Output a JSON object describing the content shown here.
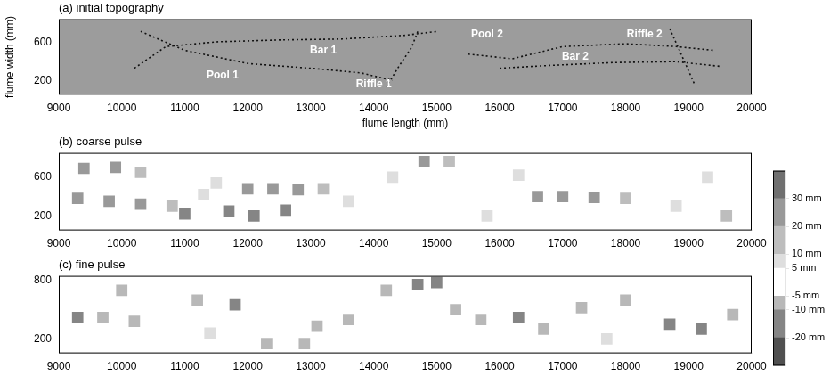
{
  "chart_data": [
    {
      "type": "scatter",
      "title": "(a) initial topography",
      "x_label": "flume length (mm)",
      "y_label": "flume width (mm)",
      "xlim": [
        9000,
        20000
      ],
      "xticks": [
        9000,
        10000,
        11000,
        12000,
        13000,
        14000,
        15000,
        16000,
        17000,
        18000,
        19000,
        20000
      ],
      "ylim": [
        50,
        850
      ],
      "yticks": [
        200,
        600
      ],
      "grid": false,
      "series": [
        {
          "color": "#111111",
          "line_style": "dotted",
          "x": [
            10200,
            10700,
            11500,
            12500,
            13500,
            14500,
            15000
          ],
          "values": [
            330,
            560,
            610,
            630,
            640,
            680,
            720
          ]
        },
        {
          "color": "#111111",
          "line_style": "dotted",
          "x": [
            10300,
            11000,
            12000,
            13000,
            13800,
            14300
          ],
          "values": [
            720,
            520,
            380,
            330,
            280,
            200
          ]
        },
        {
          "color": "#111111",
          "line_style": "dotted",
          "x": [
            14200,
            14400,
            14600,
            14700
          ],
          "values": [
            130,
            350,
            550,
            720
          ]
        },
        {
          "color": "#111111",
          "line_style": "dotted",
          "x": [
            15500,
            16200,
            17000,
            18000,
            18800,
            19400
          ],
          "values": [
            480,
            430,
            560,
            590,
            560,
            520
          ]
        },
        {
          "color": "#111111",
          "line_style": "dotted",
          "x": [
            16000,
            16800,
            17800,
            18800,
            19500
          ],
          "values": [
            330,
            360,
            390,
            400,
            350
          ]
        },
        {
          "color": "#111111",
          "line_style": "dotted",
          "x": [
            18700,
            18900,
            19100
          ],
          "values": [
            750,
            450,
            150
          ]
        }
      ],
      "annotations": [
        {
          "text": "Pool 1",
          "x": 11600,
          "y": 250
        },
        {
          "text": "Bar 1",
          "x": 13200,
          "y": 520
        },
        {
          "text": "Riffle 1",
          "x": 14000,
          "y": 160
        },
        {
          "text": "Pool 2",
          "x": 15800,
          "y": 690
        },
        {
          "text": "Bar 2",
          "x": 17200,
          "y": 450
        },
        {
          "text": "Riffle 2",
          "x": 18300,
          "y": 690
        }
      ]
    },
    {
      "type": "scatter",
      "title": "(b) coarse pulse",
      "xlim": [
        9000,
        20000
      ],
      "xticks": [
        9000,
        10000,
        11000,
        12000,
        13000,
        14000,
        15000,
        16000,
        17000,
        18000,
        19000,
        20000
      ],
      "ylim": [
        50,
        850
      ],
      "yticks": [
        200,
        600
      ],
      "grid": false,
      "cells": [
        [
          9400,
          690,
          25
        ],
        [
          9900,
          700,
          25
        ],
        [
          10300,
          650,
          15
        ],
        [
          9300,
          380,
          22
        ],
        [
          9800,
          350,
          22
        ],
        [
          10300,
          320,
          20
        ],
        [
          10800,
          300,
          15
        ],
        [
          11300,
          420,
          8
        ],
        [
          11000,
          220,
          -15
        ],
        [
          11700,
          250,
          -12
        ],
        [
          12100,
          200,
          -20
        ],
        [
          12600,
          260,
          -20
        ],
        [
          12400,
          480,
          22
        ],
        [
          12800,
          470,
          22
        ],
        [
          13200,
          480,
          15
        ],
        [
          12000,
          480,
          20
        ],
        [
          11500,
          540,
          8
        ],
        [
          13600,
          350,
          8
        ],
        [
          14800,
          760,
          22
        ],
        [
          15200,
          760,
          15
        ],
        [
          14300,
          600,
          8
        ],
        [
          16600,
          400,
          20
        ],
        [
          17000,
          400,
          22
        ],
        [
          17500,
          390,
          20
        ],
        [
          18000,
          380,
          15
        ],
        [
          16300,
          620,
          8
        ],
        [
          18800,
          300,
          8
        ],
        [
          19600,
          200,
          10
        ],
        [
          19300,
          600,
          8
        ],
        [
          15800,
          200,
          6
        ]
      ]
    },
    {
      "type": "scatter",
      "title": "(c) fine pulse",
      "xlim": [
        9000,
        20000
      ],
      "xticks": [
        9000,
        10000,
        11000,
        12000,
        13000,
        14000,
        15000,
        16000,
        17000,
        18000,
        19000,
        20000
      ],
      "ylim": [
        50,
        850
      ],
      "yticks": [
        200,
        800
      ],
      "grid": false,
      "cells": [
        [
          9300,
          420,
          -12
        ],
        [
          9700,
          420,
          -10
        ],
        [
          10200,
          380,
          -8
        ],
        [
          10000,
          700,
          -8
        ],
        [
          11200,
          600,
          -8
        ],
        [
          11800,
          550,
          -12
        ],
        [
          12300,
          150,
          -10
        ],
        [
          12900,
          150,
          -8
        ],
        [
          13600,
          400,
          -8
        ],
        [
          14700,
          760,
          -15
        ],
        [
          15000,
          780,
          -12
        ],
        [
          14200,
          700,
          -8
        ],
        [
          15300,
          500,
          -8
        ],
        [
          15700,
          400,
          -10
        ],
        [
          16300,
          420,
          -12
        ],
        [
          16700,
          300,
          -10
        ],
        [
          17300,
          520,
          -8
        ],
        [
          18000,
          600,
          -8
        ],
        [
          18700,
          350,
          -12
        ],
        [
          19200,
          300,
          -15
        ],
        [
          19700,
          450,
          -10
        ],
        [
          13100,
          330,
          -6
        ],
        [
          11400,
          260,
          6
        ],
        [
          17700,
          200,
          6
        ]
      ]
    }
  ],
  "colorbar": {
    "lim": [
      -30,
      40
    ],
    "ticks": [
      {
        "value": -20,
        "label": "-20 mm"
      },
      {
        "value": -10,
        "label": "-10 mm"
      },
      {
        "value": -5,
        "label": "-5 mm"
      },
      {
        "value": 5,
        "label": "5 mm"
      },
      {
        "value": 10,
        "label": "10 mm"
      },
      {
        "value": 20,
        "label": "20 mm"
      },
      {
        "value": 30,
        "label": "30 mm"
      }
    ]
  }
}
